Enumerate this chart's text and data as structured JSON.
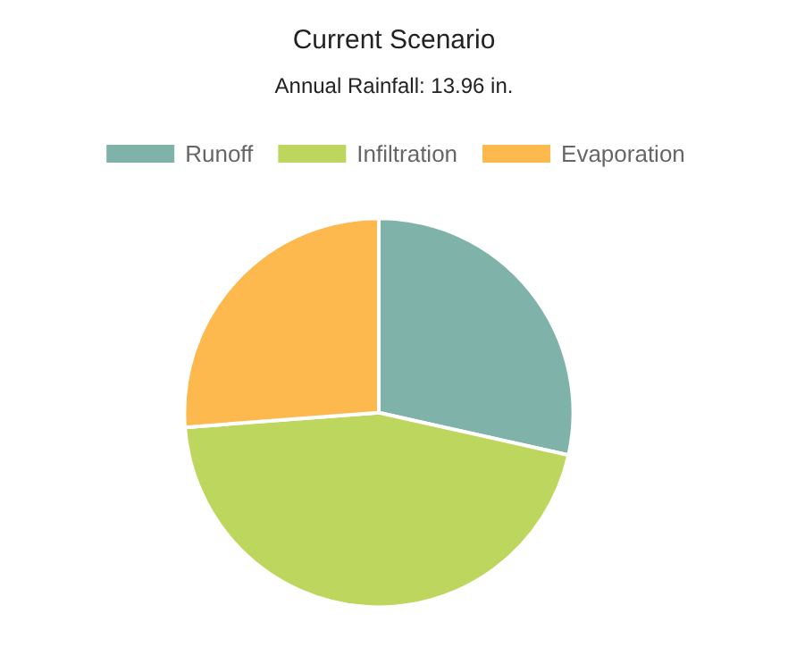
{
  "chart_data": {
    "type": "pie",
    "title": "Current Scenario",
    "subtitle": "Annual Rainfall: 13.96 in.",
    "categories": [
      "Runoff",
      "Infiltration",
      "Evaporation"
    ],
    "values": [
      28.5,
      45.3,
      26.2
    ],
    "colors": [
      "#7fb3aa",
      "#bdd65e",
      "#fdb94e"
    ],
    "legend": "top"
  }
}
